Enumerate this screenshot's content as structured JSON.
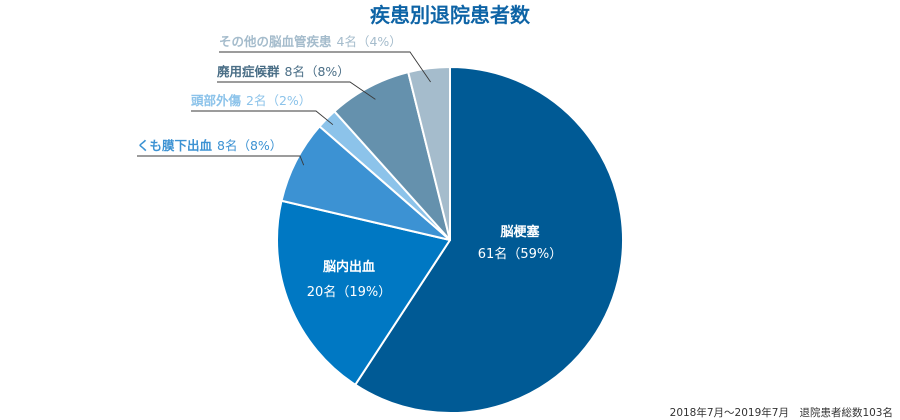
{
  "chart_data": {
    "type": "pie",
    "title": "疾患別退院患者数",
    "title_color": "#0E64A6",
    "total_patients": 103,
    "slices": [
      {
        "label": "脳梗塞",
        "count": 61,
        "value_label": "61名（59%）",
        "percent": 59,
        "color": "#005A95",
        "label_position": "inside"
      },
      {
        "label": "脳内出血",
        "count": 20,
        "value_label": "20名（19%）",
        "percent": 19,
        "color": "#0078C3",
        "label_position": "inside"
      },
      {
        "label": "くも膜下出血",
        "count": 8,
        "value_label": "8名（8%）",
        "percent": 8,
        "color": "#3C92D3",
        "label_position": "outside",
        "label_color": "#3C92D3"
      },
      {
        "label": "頭部外傷",
        "count": 2,
        "value_label": "2名（2%）",
        "percent": 2,
        "color": "#8CC3EA",
        "label_position": "outside",
        "label_color": "#8CC3EA"
      },
      {
        "label": "廃用症候群",
        "count": 8,
        "value_label": "8名（8%）",
        "percent": 8,
        "color": "#6591AD",
        "label_position": "outside",
        "label_color": "#4A6E86"
      },
      {
        "label": "その他の脳血管疾患",
        "count": 4,
        "value_label": "4名（4%）",
        "percent": 4,
        "color": "#A5BCCC",
        "label_position": "outside",
        "label_color": "#A5BCCC"
      }
    ],
    "footnote": "2018年7月～2019年7月　退院患者総数103名",
    "legend": "none"
  }
}
